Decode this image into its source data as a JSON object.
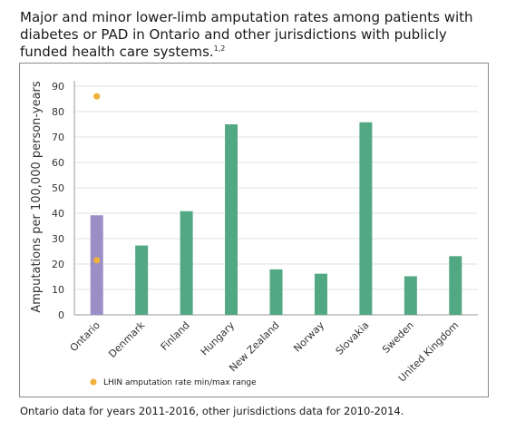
{
  "header": {
    "title": "Major and minor lower-limb amputation rates among patients with diabetes or PAD in Ontario and other jurisdictions with publicly funded health care systems.",
    "title_refs": "1,2"
  },
  "footnote": "Ontario data for years 2011-2016, other jurisdictions data for 2010-2014.",
  "chart_data": {
    "type": "bar",
    "ylabel": "Amputations per 100,000 person-years",
    "xlabel": "",
    "ylim": [
      0,
      90
    ],
    "yticks": [
      "0",
      "10",
      "20",
      "30",
      "40",
      "50",
      "60",
      "70",
      "80",
      "90"
    ],
    "grid": true,
    "categories": [
      "Ontario",
      "Denmark",
      "Finland",
      "Hungary",
      "New Zealand",
      "Norway",
      "Slovakia",
      "Sweden",
      "United Kingdom"
    ],
    "values": [
      39.2,
      27.3,
      40.8,
      75.0,
      17.9,
      16.2,
      75.8,
      15.2,
      23.1
    ],
    "bar_colors": [
      "#9b8ec4",
      "#52a882",
      "#52a882",
      "#52a882",
      "#52a882",
      "#52a882",
      "#52a882",
      "#52a882",
      "#52a882"
    ],
    "range_markers": {
      "name": "LHIN amputation rate min/max range",
      "category": "Ontario",
      "values": [
        21.5,
        86.0
      ],
      "color": "#f0b13c"
    },
    "legend_position": "bottom-left"
  }
}
